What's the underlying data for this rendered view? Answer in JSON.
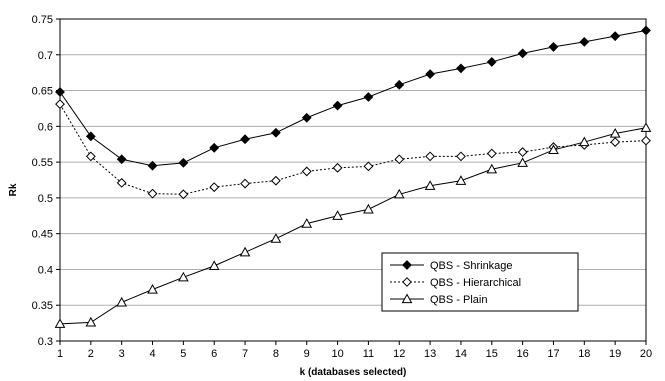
{
  "chart_data": {
    "type": "line",
    "title": "",
    "xlabel": "k (databases selected)",
    "ylabel": "Rk",
    "xlim": [
      1,
      20
    ],
    "ylim": [
      0.3,
      0.75
    ],
    "y_tick_step": 0.05,
    "grid": "horizontal",
    "legend_position": "bottom-right",
    "x": [
      1,
      2,
      3,
      4,
      5,
      6,
      7,
      8,
      9,
      10,
      11,
      12,
      13,
      14,
      15,
      16,
      17,
      18,
      19,
      20
    ],
    "x_tick_labels": [
      "1",
      "2",
      "3",
      "4",
      "5",
      "6",
      "7",
      "8",
      "9",
      "10",
      "11",
      "12",
      "13",
      "14",
      "15",
      "16",
      "17",
      "18",
      "19",
      "20"
    ],
    "y_tick_labels": [
      "0.3",
      "0.35",
      "0.4",
      "0.45",
      "0.5",
      "0.55",
      "0.6",
      "0.65",
      "0.7",
      "0.75"
    ],
    "series": [
      {
        "name": "QBS - Shrinkage",
        "marker": "filled-diamond",
        "line": "solid",
        "values": [
          0.648,
          0.586,
          0.554,
          0.545,
          0.549,
          0.57,
          0.582,
          0.591,
          0.612,
          0.629,
          0.641,
          0.658,
          0.673,
          0.681,
          0.69,
          0.702,
          0.711,
          0.718,
          0.726,
          0.734
        ]
      },
      {
        "name": "QBS - Hierarchical",
        "marker": "open-diamond",
        "line": "dotted",
        "values": [
          0.631,
          0.558,
          0.521,
          0.506,
          0.505,
          0.515,
          0.52,
          0.524,
          0.537,
          0.542,
          0.544,
          0.554,
          0.558,
          0.558,
          0.562,
          0.564,
          0.571,
          0.574,
          0.578,
          0.58
        ]
      },
      {
        "name": "QBS - Plain",
        "marker": "open-triangle",
        "line": "solid",
        "values": [
          0.324,
          0.326,
          0.354,
          0.372,
          0.389,
          0.405,
          0.424,
          0.443,
          0.464,
          0.475,
          0.484,
          0.505,
          0.517,
          0.524,
          0.54,
          0.549,
          0.567,
          0.578,
          0.59,
          0.598
        ]
      }
    ]
  },
  "colors": {
    "background": "#ffffff",
    "line": "#000000",
    "grid": "#b0b0b0"
  }
}
